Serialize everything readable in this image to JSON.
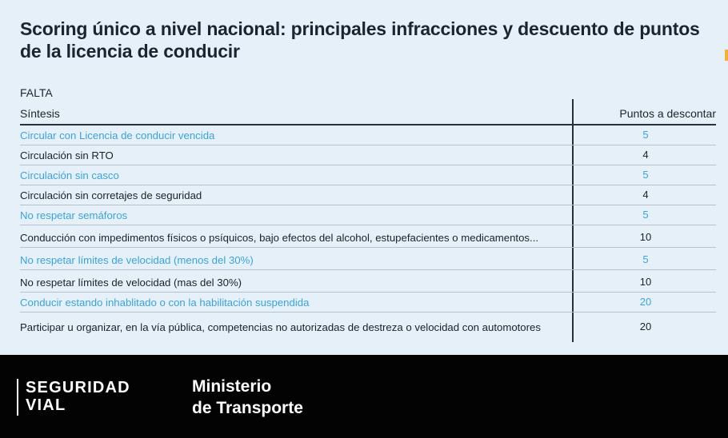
{
  "title": "Scoring único a nivel nacional: principales infracciones y descuento de puntos de la licencia de conducir",
  "table": {
    "header_group": "FALTA",
    "col_sintesis": "Síntesis",
    "col_puntos": "Puntos a descontar",
    "rows": [
      {
        "text": "Circular con Licencia de conducir vencida",
        "points": "5",
        "color": "#3aa3dc"
      },
      {
        "text": "Circulación sin RTO",
        "points": "4",
        "color": "#1c2128"
      },
      {
        "text": "Circulación sin casco",
        "points": "5",
        "color": "#3aa3dc"
      },
      {
        "text": "Circulación sin corretajes de seguridad",
        "points": "4",
        "color": "#1c2128"
      },
      {
        "text": "No respetar semáforos",
        "points": "5",
        "color": "#3aa3dc"
      },
      {
        "text": "Conducción con impedimentos físicos o psíquicos, bajo efectos del alcohol, estupefacientes o medicamentos...",
        "points": "10",
        "color": "#1c2128"
      },
      {
        "text": "No respetar límites de velocidad (menos del 30%)",
        "points": "5",
        "color": "#3aa3dc"
      },
      {
        "text": "No respetar límites de velocidad (mas del 30%)",
        "points": "10",
        "color": "#1c2128"
      },
      {
        "text": "Conducir estando inhablitado o con la habilitación suspendida",
        "points": "20",
        "color": "#3aa3dc"
      },
      {
        "text": "Participar u organizar, en la vía pública, competencias no autorizadas de destreza o velocidad con automotores",
        "points": "20",
        "color": "#1c2128"
      }
    ]
  },
  "footer": {
    "brand_line1": "SEGURIDAD",
    "brand_line2": "VIAL",
    "ministry_line1": "Ministerio",
    "ministry_line2": "de Transporte"
  },
  "colors": {
    "background": "#e6f0f9",
    "accent_blue": "#3aa3dc",
    "text_dark": "#1c2128",
    "footer_bg": "#030303"
  }
}
